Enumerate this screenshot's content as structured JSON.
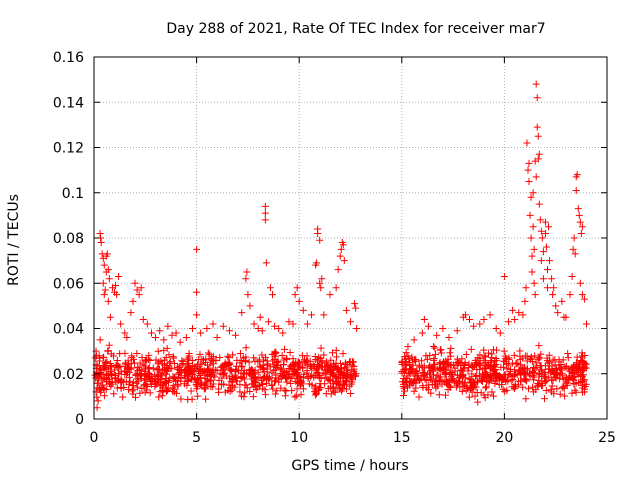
{
  "chart_data": {
    "type": "scatter",
    "title": "Day 288 of 2021, Rate Of TEC Index for receiver mar7",
    "xlabel": "GPS time / hours",
    "ylabel": "ROTI / TECUs",
    "xlim": [
      0,
      25
    ],
    "ylim": [
      0,
      0.16
    ],
    "xticks": [
      0,
      5,
      10,
      15,
      20,
      25
    ],
    "xtick_labels": [
      "0",
      "5",
      "10",
      "15",
      "20",
      "25"
    ],
    "yticks": [
      0,
      0.02,
      0.04,
      0.06,
      0.08,
      0.1,
      0.12,
      0.14,
      0.16
    ],
    "ytick_labels": [
      "0",
      "0.02",
      "0.04",
      "0.06",
      "0.08",
      "0.1",
      "0.12",
      "0.14",
      "0.16"
    ],
    "grid": true,
    "marker": "+",
    "color": "#ff0000",
    "series": [
      {
        "name": "ROTI",
        "points": [
          [
            0.1,
            0.012
          ],
          [
            0.1,
            0.024
          ],
          [
            0.1,
            0.03
          ],
          [
            0.15,
            0.005
          ],
          [
            0.2,
            0.018
          ],
          [
            0.2,
            0.008
          ],
          [
            0.25,
            0.028
          ],
          [
            0.3,
            0.035
          ],
          [
            0.3,
            0.082
          ],
          [
            0.32,
            0.08
          ],
          [
            0.35,
            0.078
          ],
          [
            0.4,
            0.073
          ],
          [
            0.45,
            0.071
          ],
          [
            0.5,
            0.068
          ],
          [
            0.45,
            0.06
          ],
          [
            0.5,
            0.055
          ],
          [
            0.55,
            0.057
          ],
          [
            0.6,
            0.065
          ],
          [
            0.6,
            0.072
          ],
          [
            0.65,
            0.073
          ],
          [
            0.7,
            0.066
          ],
          [
            0.75,
            0.062
          ],
          [
            0.7,
            0.052
          ],
          [
            0.8,
            0.045
          ],
          [
            0.9,
            0.058
          ],
          [
            1.0,
            0.056
          ],
          [
            1.05,
            0.059
          ],
          [
            1.1,
            0.055
          ],
          [
            1.2,
            0.063
          ],
          [
            1.3,
            0.042
          ],
          [
            1.5,
            0.038
          ],
          [
            1.6,
            0.036
          ],
          [
            1.8,
            0.047
          ],
          [
            1.9,
            0.052
          ],
          [
            2.0,
            0.06
          ],
          [
            2.1,
            0.057
          ],
          [
            2.2,
            0.055
          ],
          [
            2.3,
            0.058
          ],
          [
            2.4,
            0.044
          ],
          [
            2.6,
            0.042
          ],
          [
            2.8,
            0.038
          ],
          [
            3.0,
            0.036
          ],
          [
            3.2,
            0.039
          ],
          [
            3.4,
            0.035
          ],
          [
            3.6,
            0.041
          ],
          [
            3.8,
            0.037
          ],
          [
            4.0,
            0.038
          ],
          [
            4.2,
            0.034
          ],
          [
            4.5,
            0.036
          ],
          [
            4.8,
            0.04
          ],
          [
            5.0,
            0.075
          ],
          [
            5.0,
            0.056
          ],
          [
            5.0,
            0.046
          ],
          [
            5.2,
            0.038
          ],
          [
            5.5,
            0.04
          ],
          [
            5.8,
            0.042
          ],
          [
            6.0,
            0.036
          ],
          [
            6.3,
            0.041
          ],
          [
            6.6,
            0.039
          ],
          [
            6.9,
            0.037
          ],
          [
            7.2,
            0.047
          ],
          [
            7.4,
            0.062
          ],
          [
            7.45,
            0.065
          ],
          [
            7.5,
            0.055
          ],
          [
            7.6,
            0.05
          ],
          [
            7.8,
            0.042
          ],
          [
            8.0,
            0.04
          ],
          [
            8.1,
            0.045
          ],
          [
            8.2,
            0.039
          ],
          [
            8.35,
            0.094
          ],
          [
            8.35,
            0.091
          ],
          [
            8.35,
            0.088
          ],
          [
            8.4,
            0.069
          ],
          [
            8.5,
            0.043
          ],
          [
            8.6,
            0.058
          ],
          [
            8.7,
            0.055
          ],
          [
            8.8,
            0.041
          ],
          [
            9.0,
            0.04
          ],
          [
            9.2,
            0.038
          ],
          [
            9.5,
            0.043
          ],
          [
            9.7,
            0.042
          ],
          [
            9.8,
            0.055
          ],
          [
            9.9,
            0.058
          ],
          [
            10.0,
            0.052
          ],
          [
            10.2,
            0.048
          ],
          [
            10.4,
            0.042
          ],
          [
            10.6,
            0.046
          ],
          [
            10.8,
            0.068
          ],
          [
            10.85,
            0.069
          ],
          [
            10.9,
            0.082
          ],
          [
            10.9,
            0.084
          ],
          [
            11.0,
            0.079
          ],
          [
            11.0,
            0.06
          ],
          [
            11.05,
            0.058
          ],
          [
            11.1,
            0.062
          ],
          [
            11.2,
            0.046
          ],
          [
            11.5,
            0.055
          ],
          [
            11.8,
            0.058
          ],
          [
            11.9,
            0.066
          ],
          [
            12.0,
            0.072
          ],
          [
            12.05,
            0.075
          ],
          [
            12.1,
            0.078
          ],
          [
            12.15,
            0.077
          ],
          [
            12.2,
            0.07
          ],
          [
            12.3,
            0.048
          ],
          [
            12.5,
            0.043
          ],
          [
            12.7,
            0.051
          ],
          [
            12.75,
            0.049
          ],
          [
            12.8,
            0.04
          ]
        ]
      }
    ],
    "dense_bands": [
      {
        "x_range": [
          0.0,
          12.8
        ],
        "y_range": [
          0.006,
          0.034
        ],
        "count": 900
      },
      {
        "x_range": [
          15.0,
          24.0
        ],
        "y_range": [
          0.006,
          0.034
        ],
        "count": 650
      }
    ],
    "extra_points": [
      [
        15.0,
        0.025
      ],
      [
        15.3,
        0.032
      ],
      [
        15.6,
        0.035
      ],
      [
        16.0,
        0.038
      ],
      [
        16.1,
        0.044
      ],
      [
        16.3,
        0.041
      ],
      [
        16.7,
        0.037
      ],
      [
        17.0,
        0.04
      ],
      [
        17.3,
        0.036
      ],
      [
        17.7,
        0.039
      ],
      [
        18.0,
        0.045
      ],
      [
        18.1,
        0.046
      ],
      [
        18.3,
        0.044
      ],
      [
        18.5,
        0.041
      ],
      [
        18.8,
        0.042
      ],
      [
        19.0,
        0.044
      ],
      [
        19.3,
        0.046
      ],
      [
        19.6,
        0.04
      ],
      [
        19.8,
        0.038
      ],
      [
        20.0,
        0.063
      ],
      [
        20.2,
        0.043
      ],
      [
        20.4,
        0.048
      ],
      [
        20.5,
        0.044
      ],
      [
        20.7,
        0.047
      ],
      [
        20.9,
        0.046
      ],
      [
        21.0,
        0.052
      ],
      [
        21.05,
        0.058
      ],
      [
        21.1,
        0.122
      ],
      [
        21.15,
        0.11
      ],
      [
        21.2,
        0.113
      ],
      [
        21.2,
        0.105
      ],
      [
        21.25,
        0.09
      ],
      [
        21.3,
        0.098
      ],
      [
        21.3,
        0.08
      ],
      [
        21.35,
        0.072
      ],
      [
        21.35,
        0.065
      ],
      [
        21.4,
        0.1
      ],
      [
        21.4,
        0.085
      ],
      [
        21.45,
        0.075
      ],
      [
        21.45,
        0.06
      ],
      [
        21.5,
        0.114
      ],
      [
        21.5,
        0.055
      ],
      [
        21.55,
        0.107
      ],
      [
        21.55,
        0.148
      ],
      [
        21.6,
        0.142
      ],
      [
        21.6,
        0.129
      ],
      [
        21.65,
        0.125
      ],
      [
        21.65,
        0.115
      ],
      [
        21.7,
        0.117
      ],
      [
        21.7,
        0.095
      ],
      [
        21.75,
        0.088
      ],
      [
        21.8,
        0.083
      ],
      [
        21.8,
        0.07
      ],
      [
        21.85,
        0.08
      ],
      [
        21.9,
        0.074
      ],
      [
        21.9,
        0.062
      ],
      [
        22.0,
        0.087
      ],
      [
        22.0,
        0.082
      ],
      [
        22.05,
        0.076
      ],
      [
        22.1,
        0.066
      ],
      [
        22.1,
        0.058
      ],
      [
        22.15,
        0.085
      ],
      [
        22.2,
        0.07
      ],
      [
        22.3,
        0.062
      ],
      [
        22.35,
        0.055
      ],
      [
        22.4,
        0.058
      ],
      [
        22.5,
        0.05
      ],
      [
        22.6,
        0.047
      ],
      [
        22.8,
        0.052
      ],
      [
        22.9,
        0.045
      ],
      [
        23.0,
        0.045
      ],
      [
        23.2,
        0.055
      ],
      [
        23.3,
        0.063
      ],
      [
        23.35,
        0.075
      ],
      [
        23.4,
        0.08
      ],
      [
        23.45,
        0.073
      ],
      [
        23.5,
        0.107
      ],
      [
        23.55,
        0.108
      ],
      [
        23.5,
        0.101
      ],
      [
        23.6,
        0.093
      ],
      [
        23.65,
        0.09
      ],
      [
        23.7,
        0.087
      ],
      [
        23.75,
        0.082
      ],
      [
        23.8,
        0.085
      ],
      [
        23.7,
        0.06
      ],
      [
        23.8,
        0.055
      ],
      [
        23.9,
        0.053
      ],
      [
        24.0,
        0.042
      ]
    ]
  }
}
